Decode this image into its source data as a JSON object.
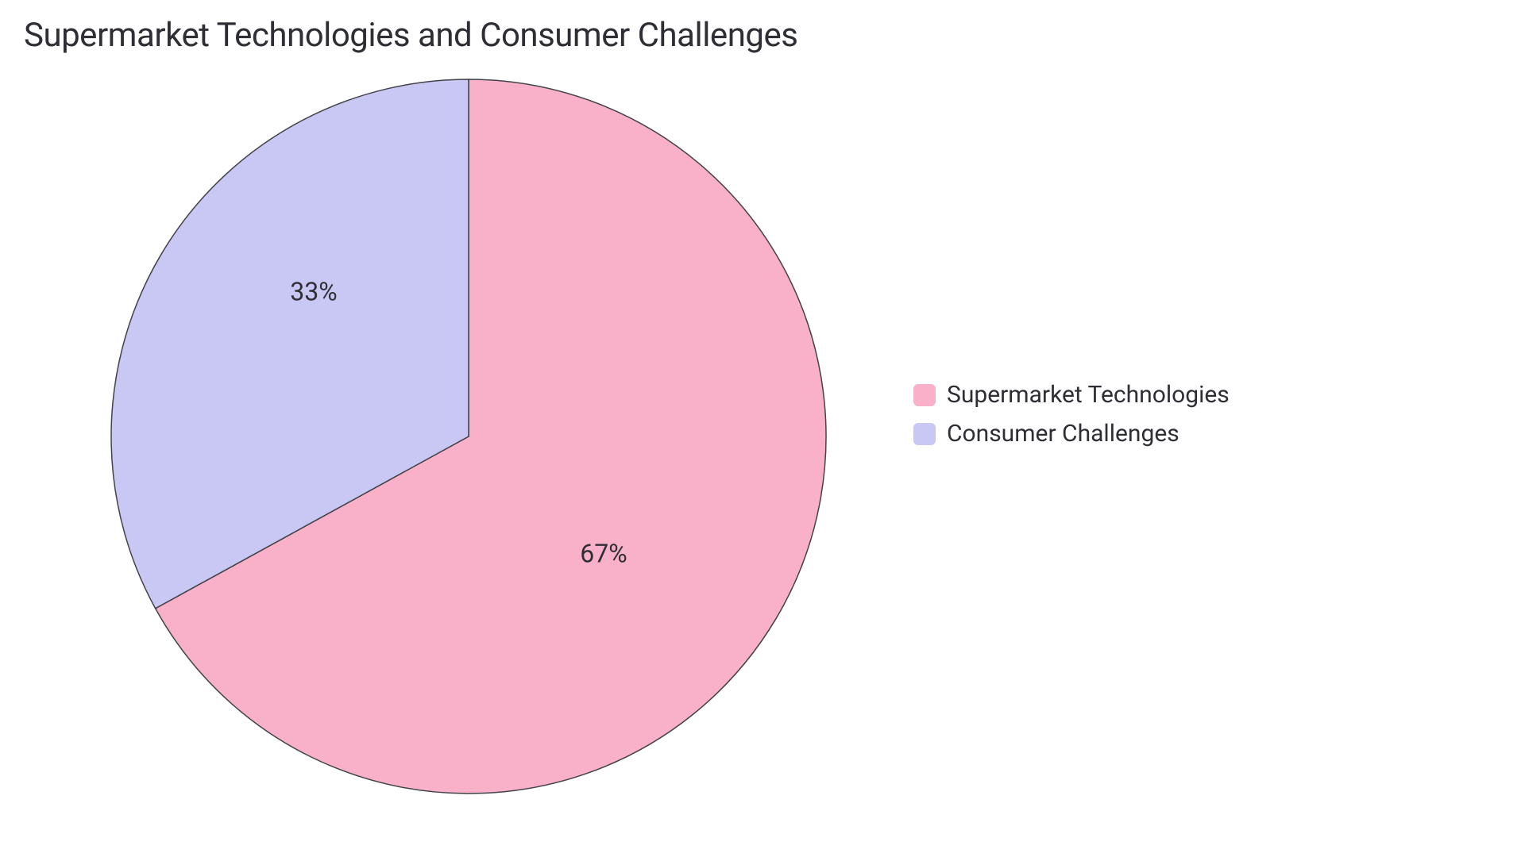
{
  "title": "Supermarket Technologies and Consumer Challenges",
  "chart": {
    "type": "pie",
    "centerX": 460,
    "centerY": 460,
    "radius": 450,
    "stroke_color": "#424249",
    "stroke_width": 1.5,
    "background_color": "#ffffff",
    "title_fontsize": 42,
    "title_color": "#2e2e34",
    "label_fontsize": 32,
    "label_color": "#2e2e34",
    "slices": [
      {
        "label": "Supermarket Technologies",
        "value": 67,
        "display": "67%",
        "color": "#f9b1ca",
        "startAngle": 0,
        "endAngle": 241.2,
        "labelX": 630,
        "labelY": 610
      },
      {
        "label": "Consumer Challenges",
        "value": 33,
        "display": "33%",
        "color": "#c9c8f4",
        "startAngle": 241.2,
        "endAngle": 360,
        "labelX": 265,
        "labelY": 280
      }
    ]
  },
  "legend": {
    "fontsize": 30,
    "color": "#2e2e34",
    "swatch_radius": 6,
    "items": [
      {
        "label": "Supermarket Technologies",
        "color": "#f9b1ca"
      },
      {
        "label": "Consumer Challenges",
        "color": "#c9c8f4"
      }
    ]
  }
}
